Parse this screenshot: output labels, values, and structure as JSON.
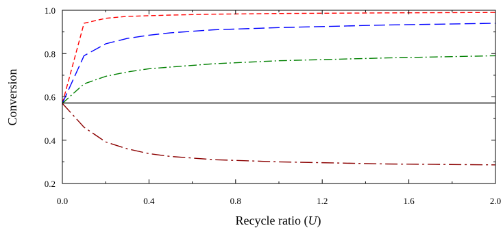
{
  "chart_data": {
    "type": "line",
    "title": "",
    "xlabel": "Recycle ratio (",
    "xlabel_var": "U",
    "xlabel_suffix": ")",
    "ylabel": "Conversion",
    "xlim": [
      0.0,
      2.0
    ],
    "ylim": [
      0.2,
      1.0
    ],
    "xticks": [
      "0.0",
      "0.4",
      "0.8",
      "1.2",
      "1.6",
      "2.0"
    ],
    "yticks": [
      "0.2",
      "0.4",
      "0.6",
      "0.8",
      "1.0"
    ],
    "grid": false,
    "legend": "none",
    "series": [
      {
        "color": "#ff0000",
        "dash": "dashed-short",
        "x": [
          0.0,
          0.1,
          0.2,
          0.3,
          0.5,
          0.7,
          1.0,
          1.5,
          2.0
        ],
        "y": [
          0.57,
          0.94,
          0.963,
          0.972,
          0.978,
          0.982,
          0.985,
          0.988,
          0.99
        ]
      },
      {
        "color": "#0000ff",
        "dash": "dashed-long",
        "x": [
          0.0,
          0.1,
          0.2,
          0.3,
          0.4,
          0.5,
          0.7,
          1.0,
          1.5,
          2.0
        ],
        "y": [
          0.57,
          0.79,
          0.845,
          0.87,
          0.885,
          0.896,
          0.91,
          0.92,
          0.932,
          0.94
        ]
      },
      {
        "color": "#008000",
        "dash": "dash-dot",
        "x": [
          0.0,
          0.1,
          0.2,
          0.3,
          0.4,
          0.5,
          0.7,
          1.0,
          1.5,
          2.0
        ],
        "y": [
          0.57,
          0.66,
          0.695,
          0.715,
          0.73,
          0.738,
          0.753,
          0.767,
          0.78,
          0.79
        ]
      },
      {
        "color": "#000000",
        "dash": "solid",
        "x": [
          0.0,
          2.0
        ],
        "y": [
          0.572,
          0.572
        ]
      },
      {
        "color": "#8b0000",
        "dash": "dash-dot-long",
        "x": [
          0.0,
          0.1,
          0.2,
          0.3,
          0.4,
          0.5,
          0.7,
          1.0,
          1.5,
          2.0
        ],
        "y": [
          0.57,
          0.46,
          0.392,
          0.36,
          0.338,
          0.325,
          0.31,
          0.3,
          0.29,
          0.286
        ]
      }
    ]
  }
}
